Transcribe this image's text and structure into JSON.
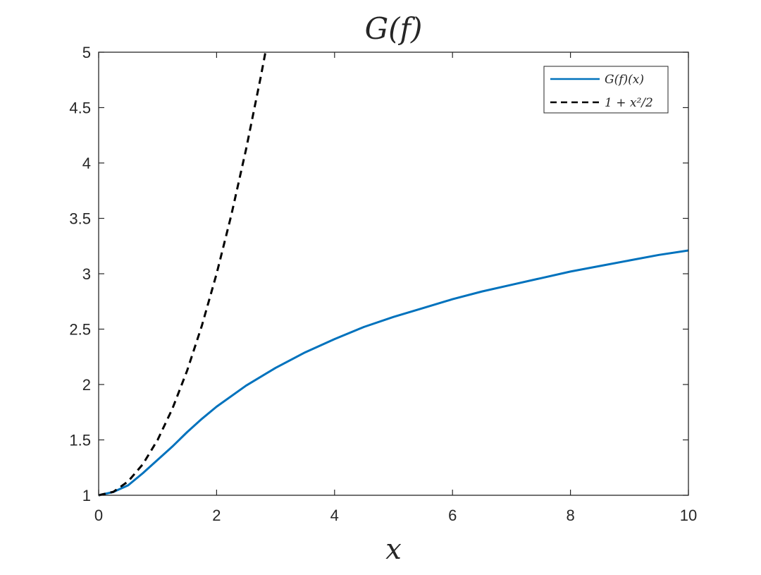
{
  "chart_data": {
    "type": "line",
    "title": "G(f)",
    "xlabel": "x",
    "ylabel": "",
    "xlim": [
      0,
      10
    ],
    "ylim": [
      1,
      5
    ],
    "xticks": [
      0,
      2,
      4,
      6,
      8,
      10
    ],
    "yticks": [
      1,
      1.5,
      2,
      2.5,
      3,
      3.5,
      4,
      4.5,
      5
    ],
    "xtick_labels": [
      "0",
      "2",
      "4",
      "6",
      "8",
      "10"
    ],
    "ytick_labels": [
      "1",
      "1.5",
      "2",
      "2.5",
      "3",
      "3.5",
      "4",
      "4.5",
      "5"
    ],
    "grid": false,
    "legend_position": "top-right",
    "series": [
      {
        "name": "G(f)(x)",
        "style": "solid",
        "color": "#0072bd",
        "x": [
          0,
          0.25,
          0.5,
          0.75,
          1,
          1.25,
          1.5,
          1.75,
          2,
          2.5,
          3,
          3.5,
          4,
          4.5,
          5,
          5.5,
          6,
          6.5,
          7,
          7.5,
          8,
          8.5,
          9,
          9.5,
          10
        ],
        "y": [
          1.0,
          1.03,
          1.09,
          1.2,
          1.32,
          1.44,
          1.57,
          1.69,
          1.8,
          1.99,
          2.15,
          2.29,
          2.41,
          2.52,
          2.61,
          2.69,
          2.77,
          2.84,
          2.9,
          2.96,
          3.02,
          3.07,
          3.12,
          3.17,
          3.21
        ]
      },
      {
        "name": "1 + x²/2",
        "style": "dashed",
        "color": "#000000",
        "x": [
          0,
          0.25,
          0.5,
          0.75,
          1,
          1.25,
          1.5,
          1.75,
          2,
          2.25,
          2.5,
          2.75,
          2.828
        ],
        "y": [
          1.0,
          1.031,
          1.125,
          1.281,
          1.5,
          1.781,
          2.125,
          2.531,
          3.0,
          3.531,
          4.125,
          4.781,
          5.0
        ]
      }
    ]
  }
}
